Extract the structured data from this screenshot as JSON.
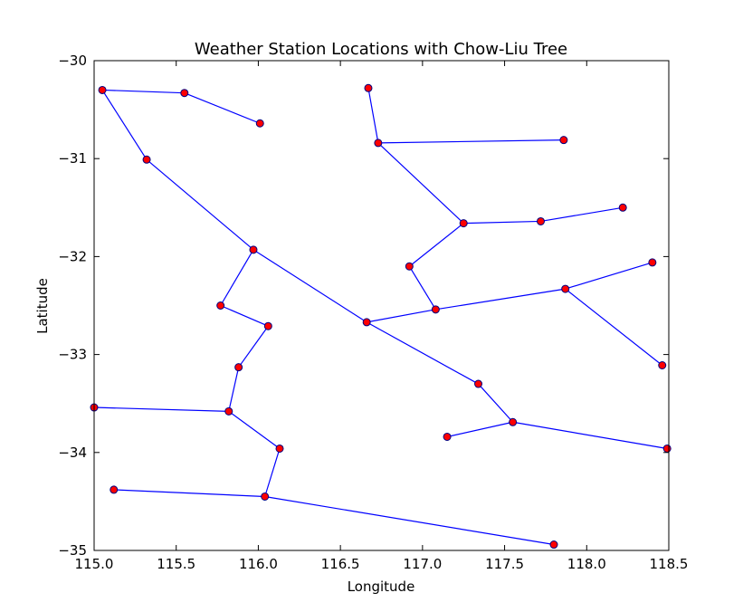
{
  "chart_data": {
    "type": "scatter",
    "title": "Weather Station Locations with Chow-Liu Tree",
    "xlabel": "Longitude",
    "ylabel": "Latitude",
    "xlim": [
      115.0,
      118.5
    ],
    "ylim": [
      -35,
      -30
    ],
    "xticks": [
      115.0,
      115.5,
      116.0,
      116.5,
      117.0,
      117.5,
      118.0,
      118.5
    ],
    "xtick_labels": [
      "115.0",
      "115.5",
      "116.0",
      "116.5",
      "117.0",
      "117.5",
      "118.0",
      "118.5"
    ],
    "yticks": [
      -30,
      -31,
      -32,
      -33,
      -34,
      -35
    ],
    "ytick_labels": [
      "−30",
      "−31",
      "−32",
      "−33",
      "−34",
      "−35"
    ],
    "grid": false,
    "point_color": "#ff0000",
    "point_edge_color": "#000080",
    "edge_color": "#0000ff",
    "points": [
      {
        "x": 115.05,
        "y": -30.3
      },
      {
        "x": 115.55,
        "y": -30.33
      },
      {
        "x": 116.01,
        "y": -30.64
      },
      {
        "x": 115.32,
        "y": -31.01
      },
      {
        "x": 115.97,
        "y": -31.93
      },
      {
        "x": 115.77,
        "y": -32.5
      },
      {
        "x": 116.06,
        "y": -32.71
      },
      {
        "x": 115.88,
        "y": -33.13
      },
      {
        "x": 115.82,
        "y": -33.58
      },
      {
        "x": 115.0,
        "y": -33.54
      },
      {
        "x": 116.13,
        "y": -33.96
      },
      {
        "x": 116.04,
        "y": -34.45
      },
      {
        "x": 115.12,
        "y": -34.38
      },
      {
        "x": 117.8,
        "y": -34.94
      },
      {
        "x": 116.67,
        "y": -30.28
      },
      {
        "x": 116.73,
        "y": -30.84
      },
      {
        "x": 117.86,
        "y": -30.81
      },
      {
        "x": 117.25,
        "y": -31.66
      },
      {
        "x": 117.72,
        "y": -31.64
      },
      {
        "x": 118.22,
        "y": -31.5
      },
      {
        "x": 116.92,
        "y": -32.1
      },
      {
        "x": 117.08,
        "y": -32.54
      },
      {
        "x": 116.66,
        "y": -32.67
      },
      {
        "x": 117.87,
        "y": -32.33
      },
      {
        "x": 118.4,
        "y": -32.06
      },
      {
        "x": 118.46,
        "y": -33.11
      },
      {
        "x": 117.34,
        "y": -33.3
      },
      {
        "x": 117.55,
        "y": -33.69
      },
      {
        "x": 117.15,
        "y": -33.84
      },
      {
        "x": 118.49,
        "y": -33.96
      }
    ],
    "edges": [
      [
        0,
        1
      ],
      [
        1,
        2
      ],
      [
        0,
        3
      ],
      [
        3,
        4
      ],
      [
        4,
        5
      ],
      [
        5,
        6
      ],
      [
        6,
        7
      ],
      [
        7,
        8
      ],
      [
        8,
        9
      ],
      [
        8,
        10
      ],
      [
        10,
        11
      ],
      [
        11,
        12
      ],
      [
        11,
        13
      ],
      [
        4,
        22
      ],
      [
        22,
        21
      ],
      [
        21,
        20
      ],
      [
        20,
        17
      ],
      [
        17,
        15
      ],
      [
        15,
        14
      ],
      [
        15,
        16
      ],
      [
        17,
        18
      ],
      [
        18,
        19
      ],
      [
        21,
        23
      ],
      [
        23,
        24
      ],
      [
        23,
        25
      ],
      [
        22,
        26
      ],
      [
        26,
        27
      ],
      [
        27,
        28
      ],
      [
        27,
        29
      ]
    ]
  }
}
